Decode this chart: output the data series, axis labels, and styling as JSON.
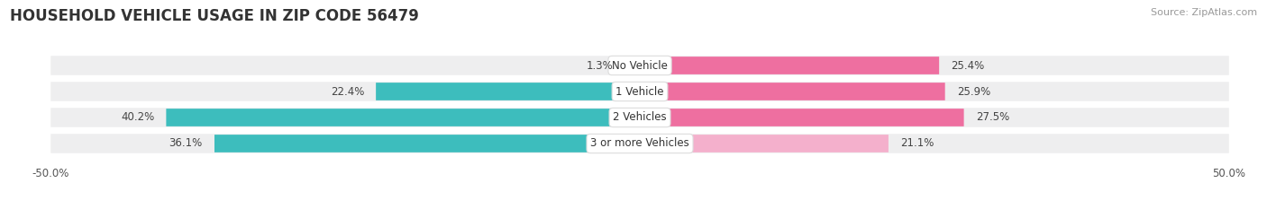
{
  "title": "HOUSEHOLD VEHICLE USAGE IN ZIP CODE 56479",
  "source": "Source: ZipAtlas.com",
  "categories": [
    "No Vehicle",
    "1 Vehicle",
    "2 Vehicles",
    "3 or more Vehicles"
  ],
  "owner_values": [
    1.3,
    22.4,
    40.2,
    36.1
  ],
  "renter_values": [
    25.4,
    25.9,
    27.5,
    21.1
  ],
  "owner_color_strong": "#3DBDBD",
  "owner_color_light": "#A8D8D8",
  "renter_color_strong": "#EE6FA0",
  "renter_color_light": "#F4B0CC",
  "bar_bg_color": "#EEEEEF",
  "row_sep_color": "#FFFFFF",
  "xlim_min": -50,
  "xlim_max": 50,
  "title_fontsize": 12,
  "source_fontsize": 8,
  "label_fontsize": 8.5,
  "category_fontsize": 8.5,
  "tick_fontsize": 8.5
}
